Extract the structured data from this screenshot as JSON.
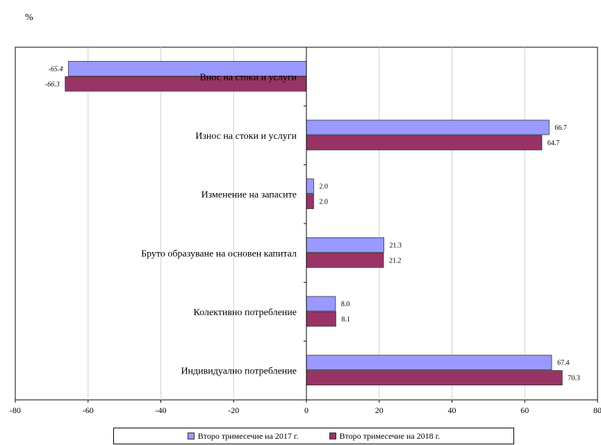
{
  "unit_label": "%",
  "chart_data": {
    "type": "bar",
    "orientation": "horizontal",
    "categories": [
      "Внос на стоки и услуги",
      "Износ на стоки и услуги",
      "Изменение на запасите",
      "Бруто образуване на основен капитал",
      "Колективно потребление",
      "Индивидуално потребление"
    ],
    "series": [
      {
        "name": "Второ тримесечие на 2017 г.",
        "values": [
          -65.4,
          66.7,
          2.0,
          21.3,
          8.0,
          67.4
        ],
        "color": "#9999ff"
      },
      {
        "name": "Второ тримесечие на 2018 г.",
        "values": [
          -66.3,
          64.7,
          2.0,
          21.2,
          8.1,
          70.3
        ],
        "color": "#993366"
      }
    ],
    "value_labels": [
      [
        "-65.4",
        "66.7",
        "2.0",
        "21.3",
        "8.0",
        "67.4"
      ],
      [
        "-66.3",
        "64.7",
        "2.0",
        "21.2",
        "8.1",
        "70.3"
      ]
    ],
    "xlim": [
      -80,
      80
    ],
    "xticks": [
      -80,
      -60,
      -40,
      -20,
      0,
      20,
      40,
      60,
      80
    ],
    "grid": "vertical",
    "legend_position": "bottom",
    "title": "",
    "xlabel": "",
    "ylabel": ""
  }
}
